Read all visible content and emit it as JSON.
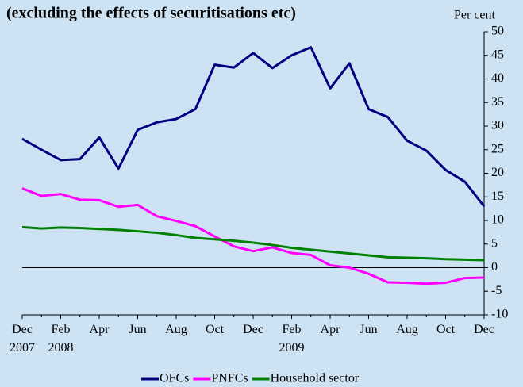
{
  "chart_data": {
    "type": "line",
    "title": "(excluding the effects of securitisations etc)",
    "y_axis_label": "Per cent",
    "categories": [
      "Dec\n2007",
      null,
      "Feb\n2008",
      null,
      "Apr",
      null,
      "Jun",
      null,
      "Aug",
      null,
      "Oct",
      null,
      "Dec",
      null,
      "Feb\n2009",
      null,
      "Apr",
      null,
      "Jun",
      null,
      "Aug",
      null,
      "Oct",
      null,
      "Dec"
    ],
    "series": [
      {
        "name": "OFCs",
        "color": "#000080",
        "values": [
          27.3,
          25,
          22.8,
          23,
          27.6,
          21,
          29.2,
          30.8,
          31.5,
          33.6,
          43,
          42.4,
          45.5,
          42.3,
          45,
          46.7,
          38,
          43.3,
          33.6,
          31.9,
          26.9,
          24.8,
          20.7,
          18.2,
          13
        ]
      },
      {
        "name": "PNFCs",
        "color": "#ff00ff",
        "values": [
          16.8,
          15.2,
          15.6,
          14.4,
          14.3,
          12.9,
          13.3,
          10.9,
          9.9,
          8.8,
          6.6,
          4.5,
          3.5,
          4.3,
          3.1,
          2.7,
          0.5,
          0,
          -1.3,
          -3.1,
          -3.2,
          -3.4,
          -3.2,
          -2.2,
          -2.1
        ]
      },
      {
        "name": "Household sector",
        "color": "#008000",
        "values": [
          8.6,
          8.3,
          8.5,
          8.4,
          8.2,
          8.0,
          7.7,
          7.4,
          6.9,
          6.3,
          6.0,
          5.7,
          5.3,
          4.8,
          4.2,
          3.8,
          3.4,
          3.0,
          2.6,
          2.2,
          2.1,
          2.0,
          1.8,
          1.7,
          1.6
        ]
      }
    ],
    "ylim": [
      -10,
      50
    ],
    "yticks": [
      50,
      45,
      40,
      35,
      30,
      25,
      20,
      15,
      10,
      5,
      0,
      -5,
      -10
    ]
  }
}
